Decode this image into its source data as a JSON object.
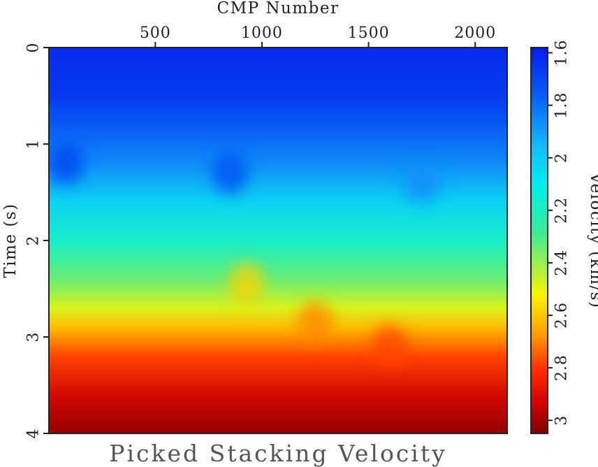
{
  "chart_data": {
    "type": "heatmap",
    "title": "Picked Stacking Velocity",
    "xlabel": "CMP Number",
    "ylabel": "Time (s)",
    "x_axis_position": "top",
    "xlim": [
      1,
      2150
    ],
    "ylim": [
      0,
      4
    ],
    "y_inverted": true,
    "x_ticks": [
      500,
      1000,
      1500,
      2000
    ],
    "y_ticks": [
      0,
      1,
      2,
      3,
      4
    ],
    "colorbar": {
      "label": "Velocity (km/s)",
      "ticks": [
        1.6,
        1.8,
        2,
        2.2,
        2.4,
        2.6,
        2.8,
        3
      ],
      "range": [
        1.58,
        3.05
      ],
      "colormap": "jet",
      "orientation": "vertical"
    },
    "velocity_profile": {
      "time_s": [
        0,
        0.5,
        0.9,
        1.2,
        1.6,
        2.0,
        2.4,
        2.7,
        2.9,
        3.2,
        3.6,
        4.0
      ],
      "velocity_kms": [
        1.62,
        1.66,
        1.78,
        1.86,
        2.02,
        2.18,
        2.34,
        2.48,
        2.62,
        2.78,
        2.92,
        3.02
      ]
    },
    "anomalies": [
      {
        "cmp": 80,
        "time_s": 1.2,
        "velocity_kms": 1.68
      },
      {
        "cmp": 850,
        "time_s": 1.3,
        "velocity_kms": 1.72
      },
      {
        "cmp": 930,
        "time_s": 2.45,
        "velocity_kms": 2.58
      },
      {
        "cmp": 1250,
        "time_s": 2.85,
        "velocity_kms": 2.7
      },
      {
        "cmp": 1600,
        "time_s": 3.1,
        "velocity_kms": 2.78
      },
      {
        "cmp": 1750,
        "time_s": 1.4,
        "velocity_kms": 1.86
      }
    ]
  }
}
